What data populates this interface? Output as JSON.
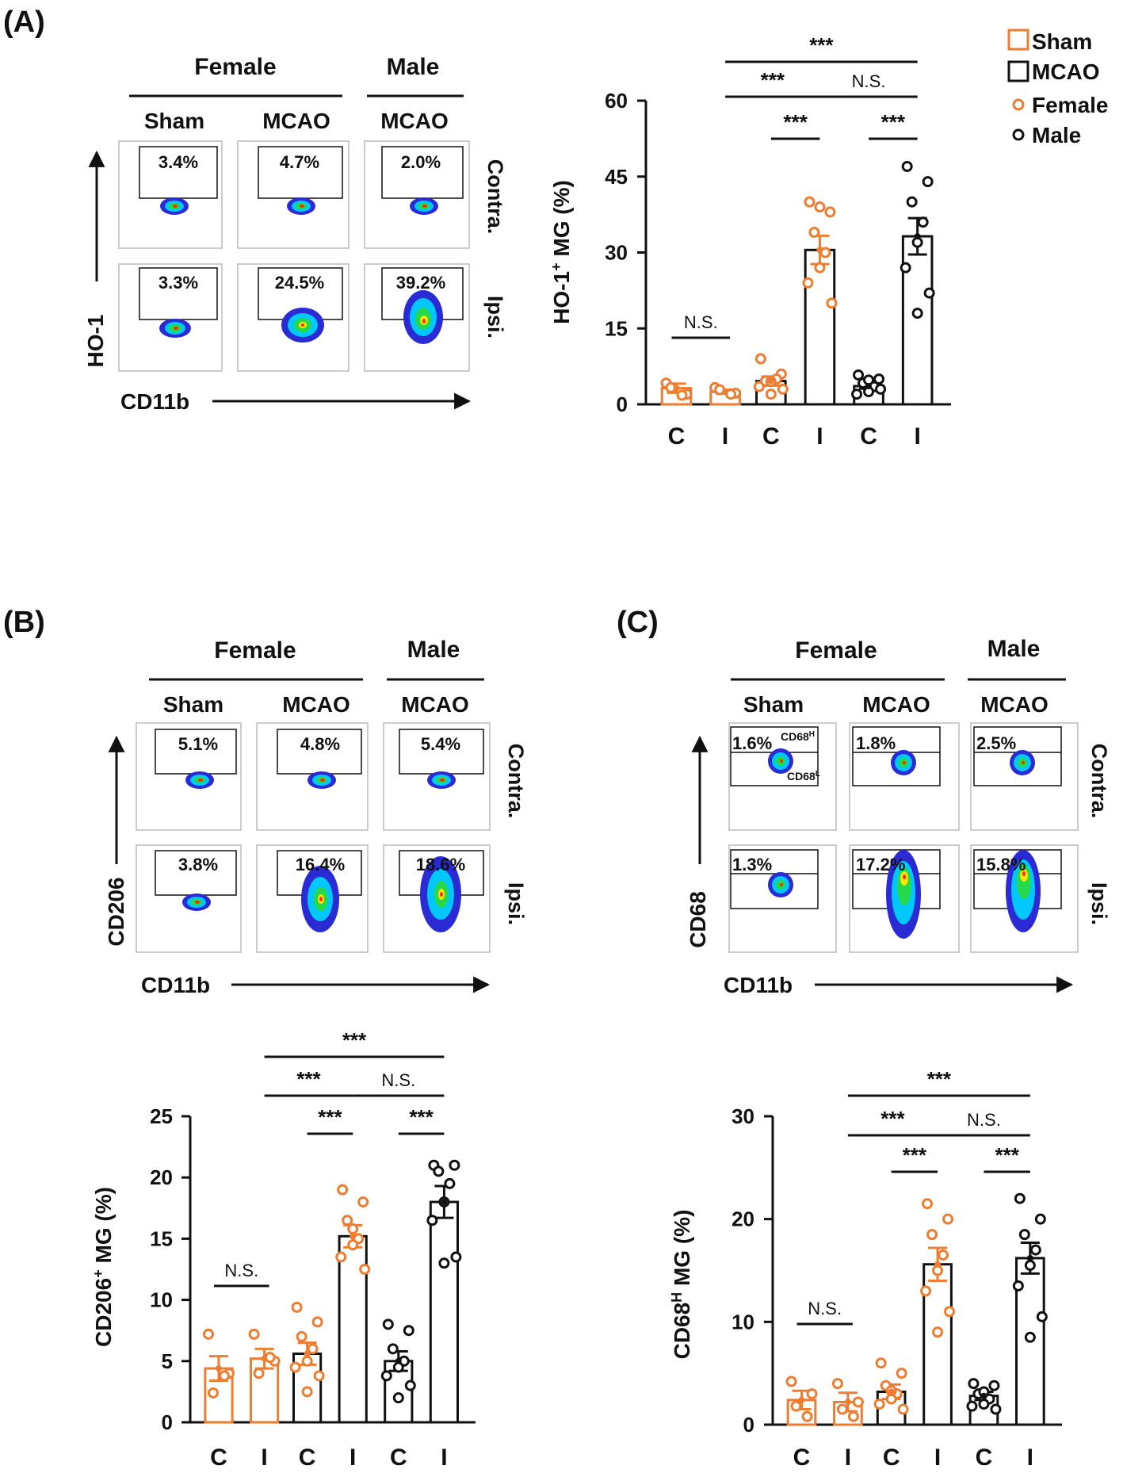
{
  "colors": {
    "female": "#ED7D31",
    "male": "#111111",
    "density": [
      "#2b2bd6",
      "#00c8ff",
      "#26d94a",
      "#ffe600",
      "#ff2a00"
    ]
  },
  "legend": {
    "sham": "Sham",
    "mcao": "MCAO",
    "female": "Female",
    "male": "Male"
  },
  "flow_panels": [
    {
      "letter": "(A)",
      "group_female": "Female",
      "group_male": "Male",
      "columns": [
        "Sham",
        "MCAO",
        "MCAO"
      ],
      "rows": [
        "Contra.",
        "Ipsi."
      ],
      "percents": [
        [
          "3.4%",
          "4.7%",
          "2.0%"
        ],
        [
          "3.3%",
          "24.5%",
          "39.2%"
        ]
      ],
      "ylabel": "HO-1",
      "xlabel": "CD11b"
    },
    {
      "letter": "(B)",
      "group_female": "Female",
      "group_male": "Male",
      "columns": [
        "Sham",
        "MCAO",
        "MCAO"
      ],
      "rows": [
        "Contra.",
        "Ipsi."
      ],
      "percents": [
        [
          "5.1%",
          "4.8%",
          "5.4%"
        ],
        [
          "3.8%",
          "16.4%",
          "18.6%"
        ]
      ],
      "ylabel": "CD206",
      "xlabel": "CD11b"
    },
    {
      "letter": "(C)",
      "group_female": "Female",
      "group_male": "Male",
      "columns": [
        "Sham",
        "MCAO",
        "MCAO"
      ],
      "rows": [
        "Contra.",
        "Ipsi."
      ],
      "percents": [
        [
          "1.6%",
          "1.8%",
          "2.5%"
        ],
        [
          "1.3%",
          "17.2%",
          "15.8%"
        ]
      ],
      "gate_high": "CD68",
      "gate_high_sup": "H",
      "gate_low": "CD68",
      "gate_low_sup": "L",
      "ylabel": "CD68",
      "xlabel": "CD11b"
    }
  ],
  "chart_data": [
    {
      "type": "bar",
      "panel": "A",
      "ylabel": "HO-1",
      "ylabel_sup": "+",
      "ylabel_rest": " MG (%)",
      "ylim": [
        0,
        60
      ],
      "yticks": [
        0,
        15,
        30,
        45,
        60
      ],
      "categories": [
        "C",
        "I",
        "C",
        "I",
        "C",
        "I"
      ],
      "groups": [
        "Sham-Female",
        "Sham-Female",
        "MCAO-Female",
        "MCAO-Female",
        "MCAO-Male",
        "MCAO-Male"
      ],
      "means": [
        3.2,
        2.5,
        4.6,
        30.5,
        3.6,
        33.2
      ],
      "sem": [
        0.9,
        0.4,
        0.9,
        2.8,
        0.5,
        3.6
      ],
      "points": [
        [
          4.2,
          2.0,
          3.3,
          1.8
        ],
        [
          3.3,
          2.2,
          2.9,
          2.0
        ],
        [
          9.0,
          6.0,
          4.6,
          5.0,
          2.0,
          3.5,
          3.0,
          4.5
        ],
        [
          40.0,
          38.0,
          34.0,
          30.0,
          27.0,
          24.0,
          20.0,
          39.0
        ],
        [
          5.8,
          5.0,
          4.2,
          3.5,
          2.5,
          2.0,
          3.0,
          4.8
        ],
        [
          47.0,
          44.0,
          40.0,
          36.0,
          32.0,
          27.0,
          22.0,
          18.0
        ]
      ],
      "comparisons": [
        {
          "from": 1,
          "to": 5,
          "label": "***",
          "level": 0
        },
        {
          "from": 1,
          "to": 3,
          "label": "***",
          "level": 1
        },
        {
          "from": 3,
          "to": 5,
          "label": "N.S.",
          "level": 1
        },
        {
          "from": 2,
          "to": 3,
          "label": "***",
          "level": 2
        },
        {
          "from": 4,
          "to": 5,
          "label": "***",
          "level": 2
        },
        {
          "from": 0,
          "to": 1,
          "label": "N.S.",
          "level": 3
        }
      ]
    },
    {
      "type": "bar",
      "panel": "B",
      "ylabel": "CD206",
      "ylabel_sup": "+",
      "ylabel_rest": " MG (%)",
      "ylim": [
        0,
        25
      ],
      "yticks": [
        0,
        5,
        10,
        15,
        20,
        25
      ],
      "categories": [
        "C",
        "I",
        "C",
        "I",
        "C",
        "I"
      ],
      "groups": [
        "Sham-Female",
        "Sham-Female",
        "MCAO-Female",
        "MCAO-Female",
        "MCAO-Male",
        "MCAO-Male"
      ],
      "means": [
        4.4,
        5.2,
        5.6,
        15.2,
        5.0,
        18.0
      ],
      "sem": [
        1.0,
        0.8,
        0.9,
        0.9,
        0.8,
        1.3
      ],
      "points": [
        [
          7.2,
          4.0,
          2.4,
          3.8
        ],
        [
          7.2,
          5.0,
          4.0,
          5.3
        ],
        [
          9.4,
          8.2,
          7.0,
          6.0,
          5.0,
          4.5,
          3.8,
          2.5
        ],
        [
          19.0,
          18.0,
          16.5,
          15.0,
          14.5,
          13.5,
          12.5,
          15.8
        ],
        [
          8.0,
          7.5,
          6.0,
          5.0,
          4.5,
          3.8,
          3.0,
          2.0
        ],
        [
          21.0,
          21.0,
          20.5,
          19.5,
          18.0,
          16.5,
          13.5,
          13.0
        ]
      ],
      "comparisons": [
        {
          "from": 1,
          "to": 5,
          "label": "***",
          "level": 0
        },
        {
          "from": 1,
          "to": 3,
          "label": "***",
          "level": 1
        },
        {
          "from": 3,
          "to": 5,
          "label": "N.S.",
          "level": 1
        },
        {
          "from": 2,
          "to": 3,
          "label": "***",
          "level": 2
        },
        {
          "from": 4,
          "to": 5,
          "label": "***",
          "level": 2
        },
        {
          "from": 0,
          "to": 1,
          "label": "N.S.",
          "level": 3
        }
      ]
    },
    {
      "type": "bar",
      "panel": "C",
      "ylabel": "CD68",
      "ylabel_sup": "H",
      "ylabel_rest": " MG (%)",
      "ylim": [
        0,
        30
      ],
      "yticks": [
        0,
        10,
        20,
        30
      ],
      "categories": [
        "C",
        "I",
        "C",
        "I",
        "C",
        "I"
      ],
      "groups": [
        "Sham-Female",
        "Sham-Female",
        "MCAO-Female",
        "MCAO-Female",
        "MCAO-Male",
        "MCAO-Male"
      ],
      "means": [
        2.4,
        2.2,
        3.2,
        15.6,
        2.8,
        16.2
      ],
      "sem": [
        0.9,
        0.9,
        0.7,
        1.6,
        0.4,
        1.5
      ],
      "points": [
        [
          4.2,
          3.0,
          1.8,
          0.8
        ],
        [
          4.0,
          2.2,
          1.5,
          0.8
        ],
        [
          6.0,
          5.0,
          3.8,
          3.0,
          2.5,
          2.0,
          1.5,
          3.3
        ],
        [
          21.5,
          20.0,
          18.5,
          16.5,
          15.0,
          13.0,
          11.0,
          9.0
        ],
        [
          4.0,
          3.8,
          3.0,
          2.5,
          2.0,
          1.8,
          1.5,
          3.2
        ],
        [
          22.0,
          20.0,
          18.5,
          17.0,
          15.5,
          13.5,
          10.5,
          8.5
        ]
      ],
      "comparisons": [
        {
          "from": 1,
          "to": 5,
          "label": "***",
          "level": 0
        },
        {
          "from": 1,
          "to": 3,
          "label": "***",
          "level": 1
        },
        {
          "from": 3,
          "to": 5,
          "label": "N.S.",
          "level": 1
        },
        {
          "from": 2,
          "to": 3,
          "label": "***",
          "level": 2
        },
        {
          "from": 4,
          "to": 5,
          "label": "***",
          "level": 2
        },
        {
          "from": 0,
          "to": 1,
          "label": "N.S.",
          "level": 3
        }
      ]
    }
  ]
}
